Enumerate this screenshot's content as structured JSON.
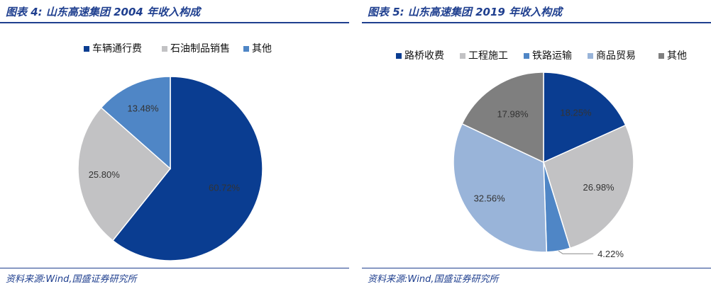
{
  "colors": {
    "accent": "#1f3f8f",
    "dark_blue": "#0a3d91",
    "light_gray": "#c2c2c4",
    "mid_blue": "#4f86c6",
    "pale_blue": "#99b4d9",
    "dark_gray": "#7f7f7f"
  },
  "chart_data": [
    {
      "type": "pie",
      "title": "图表 4:  山东高速集团 2004 年收入构成",
      "source": "资料来源:Wind,国盛证券研究所",
      "legend_position": "top",
      "slices": [
        {
          "name": "车辆通行费",
          "value": 60.72,
          "label": "60.72%",
          "color": "#0a3d91"
        },
        {
          "name": "石油制品销售",
          "value": 25.8,
          "label": "25.80%",
          "color": "#c2c2c4"
        },
        {
          "name": "其他",
          "value": 13.48,
          "label": "13.48%",
          "color": "#4f86c6"
        }
      ]
    },
    {
      "type": "pie",
      "title": "图表 5:  山东高速集团 2019 年收入构成",
      "source": "资料来源:Wind,国盛证券研究所",
      "legend_position": "top",
      "slices": [
        {
          "name": "路桥收费",
          "value": 18.25,
          "label": "18.25%",
          "color": "#0a3d91"
        },
        {
          "name": "工程施工",
          "value": 26.98,
          "label": "26.98%",
          "color": "#c2c2c4"
        },
        {
          "name": "铁路运输",
          "value": 4.22,
          "label": "4.22%",
          "color": "#4f86c6"
        },
        {
          "name": "商品贸易",
          "value": 32.56,
          "label": "32.56%",
          "color": "#99b4d9"
        },
        {
          "name": "其他",
          "value": 17.98,
          "label": "17.98%",
          "color": "#7f7f7f"
        }
      ]
    }
  ]
}
